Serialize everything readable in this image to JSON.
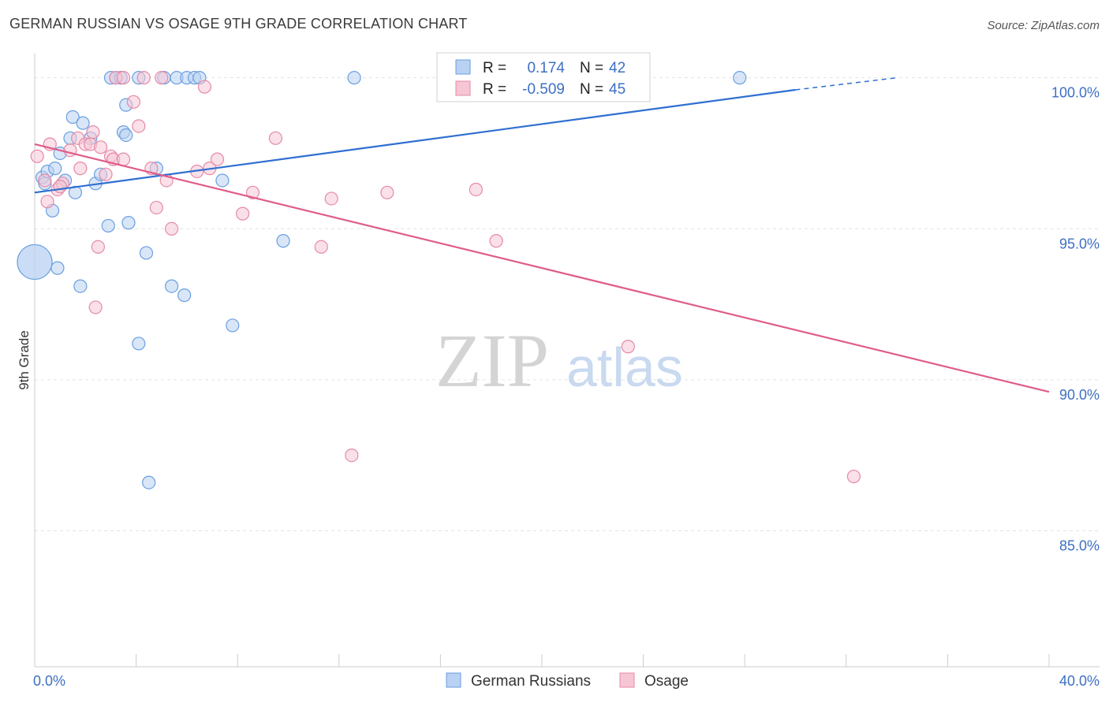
{
  "chart_data": {
    "type": "scatter",
    "title": "GERMAN RUSSIAN VS OSAGE 9TH GRADE CORRELATION CHART",
    "source": "Source: ZipAtlas.com",
    "ylabel": "9th Grade",
    "xlim": [
      0,
      40
    ],
    "ylim": [
      80.5,
      100.8
    ],
    "x_tick_labels": [
      "0.0%",
      "40.0%"
    ],
    "y_ticks": [
      {
        "value": 100,
        "label": "100.0%"
      },
      {
        "value": 95,
        "label": "95.0%"
      },
      {
        "value": 90,
        "label": "90.0%"
      },
      {
        "value": 85,
        "label": "85.0%"
      }
    ],
    "grid": true,
    "watermark": {
      "zip": "ZIP",
      "atlas": "atlas"
    },
    "legend": {
      "items": [
        {
          "r_label": "R =",
          "r_value": "0.174",
          "n_label": "N =",
          "n_value": "42"
        },
        {
          "r_label": "R =",
          "r_value": "-0.509",
          "n_label": "N =",
          "n_value": "45"
        }
      ]
    },
    "series": [
      {
        "name": "German Russians",
        "color": "#6a9fe0",
        "fill": "#b9d1f3",
        "line_color": "#2e6fd1",
        "trend": {
          "x0": 0,
          "y0": 96.2,
          "x1": 30,
          "y1": 99.6,
          "dash_to_x": 34,
          "dash_to_y": 100.0
        },
        "points": [
          [
            0.3,
            96.7
          ],
          [
            0.5,
            96.9
          ],
          [
            0.8,
            97.0
          ],
          [
            1.0,
            97.5
          ],
          [
            0.4,
            96.5
          ],
          [
            1.2,
            96.6
          ],
          [
            1.4,
            98.0
          ],
          [
            1.5,
            98.7
          ],
          [
            1.9,
            98.5
          ],
          [
            2.2,
            98.0
          ],
          [
            2.4,
            96.5
          ],
          [
            2.6,
            96.8
          ],
          [
            1.6,
            96.2
          ],
          [
            0.7,
            95.6
          ],
          [
            3.0,
            100.0
          ],
          [
            3.2,
            100.0
          ],
          [
            3.4,
            100.0
          ],
          [
            4.1,
            100.0
          ],
          [
            5.1,
            100.0
          ],
          [
            5.6,
            100.0
          ],
          [
            6.0,
            100.0
          ],
          [
            6.3,
            100.0
          ],
          [
            6.5,
            100.0
          ],
          [
            12.6,
            100.0
          ],
          [
            27.8,
            100.0
          ],
          [
            3.5,
            98.2
          ],
          [
            3.6,
            99.1
          ],
          [
            3.6,
            98.1
          ],
          [
            4.8,
            97.0
          ],
          [
            7.4,
            96.6
          ],
          [
            2.9,
            95.1
          ],
          [
            3.7,
            95.2
          ],
          [
            0.9,
            93.7
          ],
          [
            1.8,
            93.1
          ],
          [
            4.4,
            94.2
          ],
          [
            9.8,
            94.6
          ],
          [
            5.4,
            93.1
          ],
          [
            5.9,
            92.8
          ],
          [
            7.8,
            91.8
          ],
          [
            4.1,
            91.2
          ],
          [
            4.5,
            86.6
          ],
          [
            0.0,
            93.9
          ]
        ]
      },
      {
        "name": "Osage",
        "color": "#e68aa6",
        "fill": "#f6c6d5",
        "line_color": "#e05c8a",
        "trend": {
          "x0": 0,
          "y0": 97.8,
          "x1": 40,
          "y1": 89.6
        },
        "points": [
          [
            0.6,
            97.8
          ],
          [
            1.4,
            97.6
          ],
          [
            1.7,
            98.0
          ],
          [
            2.0,
            97.8
          ],
          [
            2.2,
            97.8
          ],
          [
            2.3,
            98.2
          ],
          [
            2.6,
            97.7
          ],
          [
            3.0,
            97.4
          ],
          [
            3.1,
            97.3
          ],
          [
            3.5,
            97.3
          ],
          [
            0.4,
            96.6
          ],
          [
            0.9,
            96.3
          ],
          [
            1.1,
            96.5
          ],
          [
            1.8,
            97.0
          ],
          [
            3.2,
            100.0
          ],
          [
            3.5,
            100.0
          ],
          [
            4.3,
            100.0
          ],
          [
            5.0,
            100.0
          ],
          [
            6.7,
            99.7
          ],
          [
            3.9,
            99.2
          ],
          [
            4.1,
            98.4
          ],
          [
            9.5,
            98.0
          ],
          [
            4.6,
            97.0
          ],
          [
            5.2,
            96.6
          ],
          [
            6.9,
            97.0
          ],
          [
            7.2,
            97.3
          ],
          [
            8.6,
            96.2
          ],
          [
            11.7,
            96.0
          ],
          [
            13.9,
            96.2
          ],
          [
            17.4,
            96.3
          ],
          [
            4.8,
            95.7
          ],
          [
            8.2,
            95.5
          ],
          [
            5.4,
            95.0
          ],
          [
            2.5,
            94.4
          ],
          [
            11.3,
            94.4
          ],
          [
            18.2,
            94.6
          ],
          [
            2.4,
            92.4
          ],
          [
            23.4,
            91.1
          ],
          [
            12.5,
            87.5
          ],
          [
            32.3,
            86.8
          ],
          [
            0.5,
            95.9
          ],
          [
            1.0,
            96.4
          ],
          [
            6.4,
            96.9
          ],
          [
            2.8,
            96.8
          ],
          [
            0.1,
            97.4
          ]
        ]
      }
    ],
    "bottom_legend": [
      "German Russians",
      "Osage"
    ]
  }
}
